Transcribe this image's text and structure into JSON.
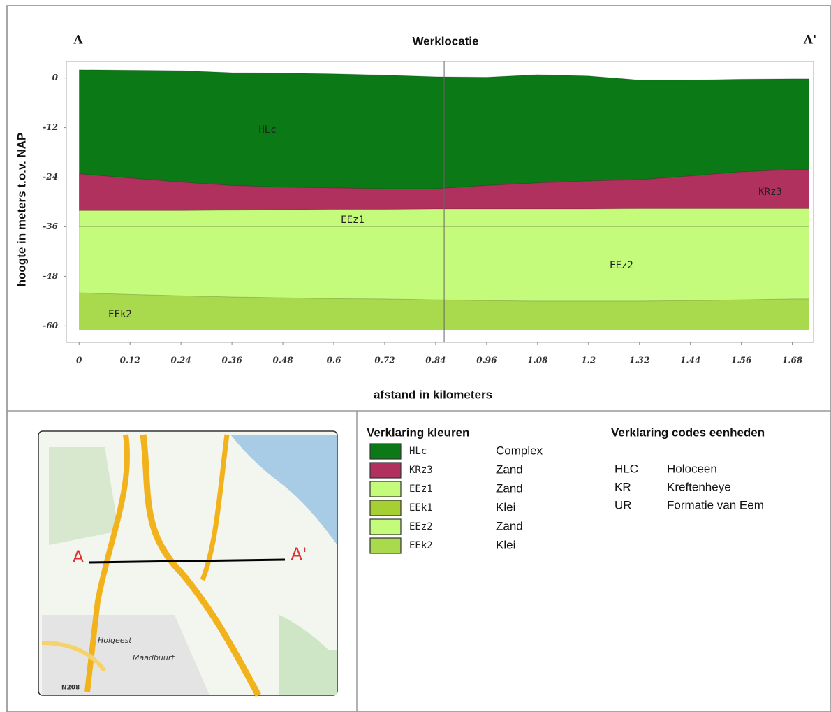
{
  "chart_data": {
    "type": "area",
    "title": "Werklocatie",
    "end_labels": [
      "A",
      "A'"
    ],
    "xlabel": "afstand in kilometers",
    "ylabel": "hoogte in meters t.o.v. NAP",
    "x": [
      0,
      0.12,
      0.24,
      0.36,
      0.48,
      0.6,
      0.72,
      0.84,
      0.96,
      1.08,
      1.2,
      1.32,
      1.44,
      1.56,
      1.68,
      1.72
    ],
    "series": [
      {
        "name": "HLc",
        "color": "#0b7a16",
        "values": [
          2,
          1.9,
          1.8,
          1.3,
          1.2,
          1,
          0.7,
          0.3,
          0.2,
          0.8,
          0.5,
          -0.5,
          -0.5,
          -0.3,
          -0.2,
          -0.2
        ]
      },
      {
        "name": "KRz3",
        "color": "#b0305e",
        "values": [
          -23.2,
          -24.2,
          -25.2,
          -26,
          -26.4,
          -26.6,
          -26.8,
          -26.8,
          -26,
          -25.4,
          -24.9,
          -24.6,
          -23.7,
          -22.7,
          -22.2,
          -22.2
        ]
      },
      {
        "name": "EEz1",
        "color": "#c5fb7b",
        "values": [
          -32.1,
          -32.1,
          -32.1,
          -32,
          -31.9,
          -31.8,
          -31.8,
          -31.7,
          -31.7,
          -31.7,
          -31.7,
          -31.6,
          -31.6,
          -31.6,
          -31.6,
          -31.6
        ]
      },
      {
        "name": "EEz2",
        "color": "#c5fb7b",
        "values": [
          -36,
          -36,
          -36,
          -36,
          -36,
          -36,
          -36,
          -36,
          -36,
          -36,
          -36,
          -36,
          -36,
          -36,
          -36,
          -36
        ]
      },
      {
        "name": "EEk2",
        "color": "#a9d94c",
        "values": [
          -52,
          -52.4,
          -52.7,
          -53,
          -53.2,
          -53.4,
          -53.5,
          -53.7,
          -53.9,
          -54,
          -54,
          -54,
          -53.9,
          -53.7,
          -53.5,
          -53.5
        ]
      }
    ],
    "base": -61,
    "marker_x": 0.86,
    "xlim": [
      -0.03,
      1.73
    ],
    "ylim": [
      -64,
      4
    ],
    "xticks": [
      0,
      0.12,
      0.24,
      0.36,
      0.48,
      0.6,
      0.72,
      0.84,
      0.96,
      1.08,
      1.2,
      1.32,
      1.44,
      1.56,
      1.68
    ],
    "yticks": [
      0,
      -12,
      -24,
      -36,
      -48,
      -60
    ]
  },
  "legend_colors": {
    "title": "Verklaring kleuren",
    "rows": [
      {
        "code": "HLc",
        "color": "#0b7a16",
        "description": "Complex"
      },
      {
        "code": "KRz3",
        "color": "#b0305e",
        "description": "Zand"
      },
      {
        "code": "EEz1",
        "color": "#c5fb7b",
        "description": "Zand"
      },
      {
        "code": "EEk1",
        "color": "#a6cf34",
        "description": "Klei"
      },
      {
        "code": "EEz2",
        "color": "#c5fb7b",
        "description": "Zand"
      },
      {
        "code": "EEk2",
        "color": "#a9d94c",
        "description": "Klei"
      }
    ]
  },
  "legend_codes": {
    "title": "Verklaring codes eenheden",
    "rows": [
      [
        "HLC",
        "Holoceen"
      ],
      [
        "KR",
        "Kreftenheye"
      ],
      [
        "UR",
        "Formatie van Eem"
      ]
    ]
  },
  "map": {
    "start": "A",
    "end": "A'",
    "places": [
      "Holgeest",
      "Maadbuurt",
      "N208"
    ]
  }
}
